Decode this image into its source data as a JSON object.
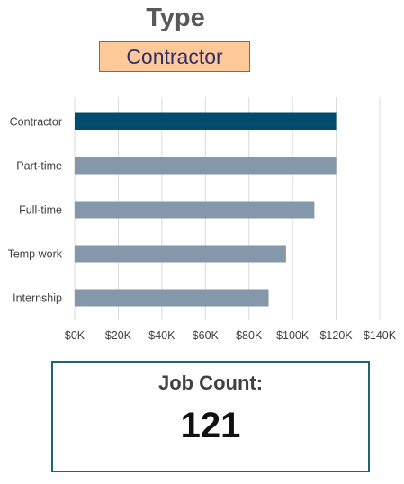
{
  "slicer": {
    "title": "Type",
    "selected": "Contractor",
    "selected_color": "#ffc999"
  },
  "kpi": {
    "label": "Job Count:",
    "value": "121",
    "border_color": "#1f6474"
  },
  "chart_data": {
    "type": "bar",
    "orientation": "horizontal",
    "categories": [
      "Contractor",
      "Part-time",
      "Full-time",
      "Temp work",
      "Internship"
    ],
    "values": [
      120000,
      120000,
      110000,
      97000,
      89000
    ],
    "highlighted": "Contractor",
    "xlim": [
      0,
      140000
    ],
    "xticks": [
      "$0K",
      "$20K",
      "$40K",
      "$60K",
      "$80K",
      "$100K",
      "$120K",
      "$140K"
    ],
    "grid": true,
    "colors": {
      "highlight": "#004c6d",
      "default": "#8497ab",
      "grid": "#d9d9d9"
    }
  }
}
